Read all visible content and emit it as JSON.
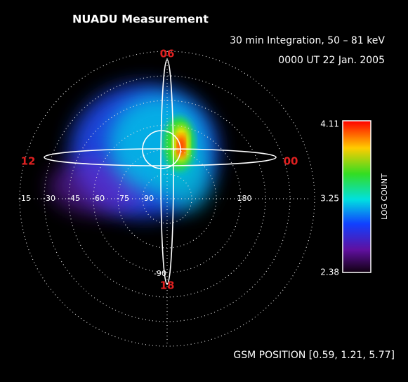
{
  "header": {
    "title": "NUADU  Measurement",
    "integration": "30 min Integration, 50 – 81 keV",
    "time": "0000 UT 22 Jan. 2005"
  },
  "image": {
    "mlt_labels": [
      "06",
      "12",
      "00",
      "18"
    ],
    "latitude_labels": [
      "-15",
      "-30",
      "-45",
      "-60",
      "-75",
      "-90",
      "180",
      "-90"
    ],
    "colorbar": {
      "max": "4.11",
      "mid": "3.25",
      "min": "2.38",
      "label": "LOG COUNT"
    }
  },
  "footer": {
    "gsm_position": "GSM POSITION [0.59, 1.21, 5.77]"
  }
}
